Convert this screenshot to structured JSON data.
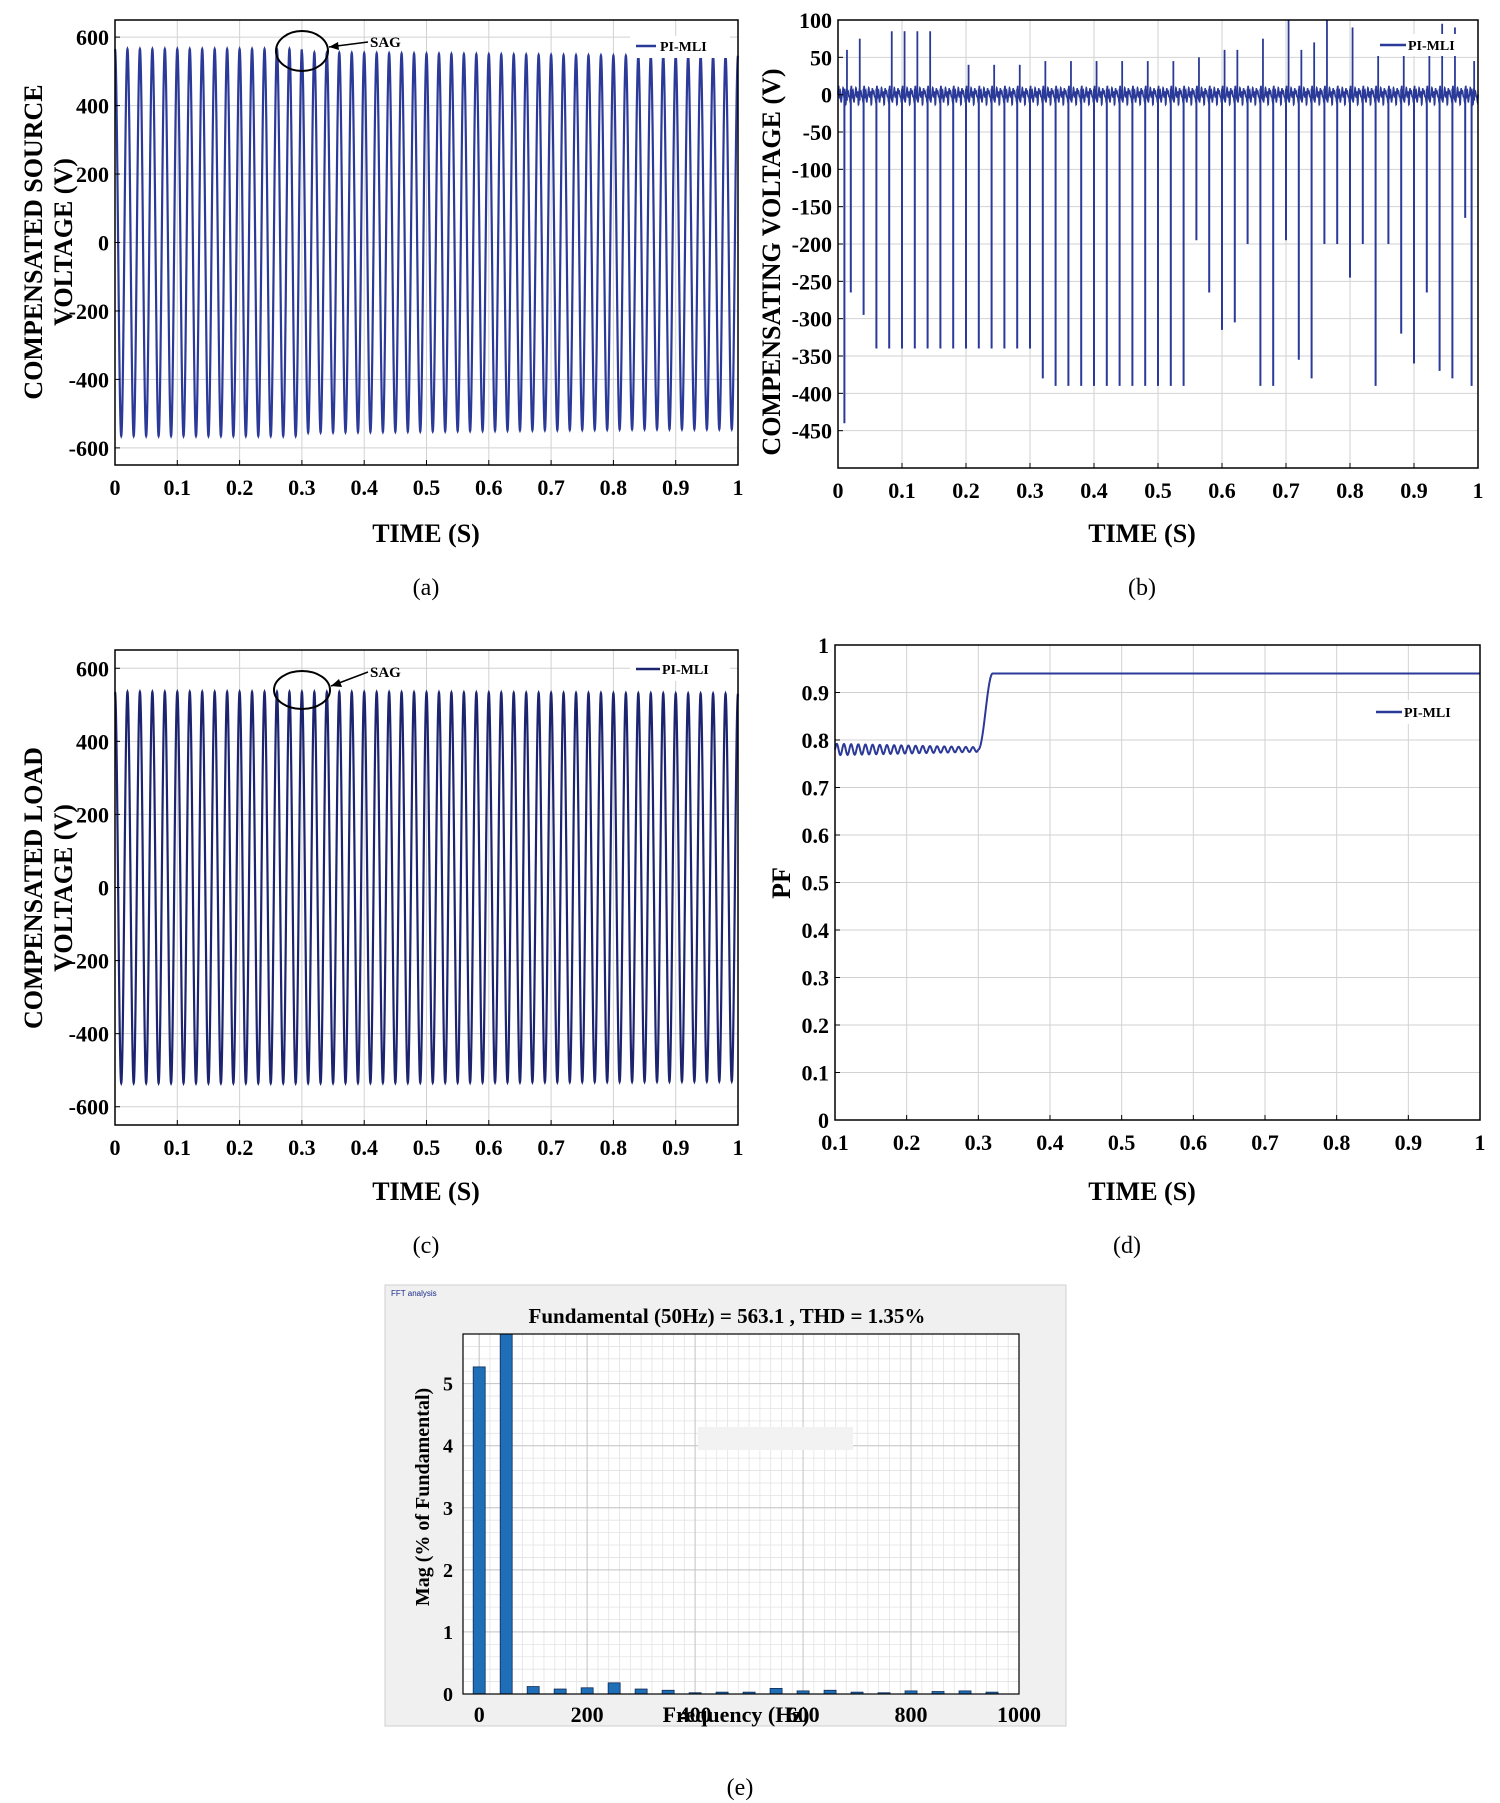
{
  "colors": {
    "trace": "#2b3a98",
    "trace_dark": "#1c2470",
    "bar": "#1f6fb8",
    "bar_edge": "#0d2a55",
    "grid": "#d2d2d2",
    "fft_bg": "#f0f0f0"
  },
  "chart_data": [
    {
      "id": "a",
      "type": "line",
      "caption": "(a)",
      "ylabel_lines": [
        "COMPENSATED SOURCE",
        "VOLTAGE (V)"
      ],
      "xlabel": "TIME (S)",
      "legend": "PI-MLI",
      "annotation": "SAG",
      "xlim": [
        0,
        1
      ],
      "ylim": [
        -650,
        650
      ],
      "xticks": [
        "0",
        "0.1",
        "0.2",
        "0.3",
        "0.4",
        "0.5",
        "0.6",
        "0.7",
        "0.8",
        "0.9",
        "1"
      ],
      "yticks": [
        "600",
        "400",
        "200",
        "0",
        "-200",
        "-400",
        "-600"
      ],
      "signal": {
        "frequency_hz": 50,
        "amplitude_before_sag": 565,
        "amplitude_after_sag": 555,
        "sag_start_s": 0.3,
        "amplitude_end_s": 0.85,
        "amplitude_end": 545
      }
    },
    {
      "id": "b",
      "type": "line",
      "caption": "(b)",
      "ylabel_lines": [
        "COMPENSATING VOLTAGE (V)"
      ],
      "xlabel": "TIME (S)",
      "legend": "PI-MLI",
      "xlim": [
        0,
        1
      ],
      "ylim": [
        -500,
        100
      ],
      "xticks": [
        "0",
        "0.1",
        "0.2",
        "0.3",
        "0.4",
        "0.5",
        "0.6",
        "0.7",
        "0.8",
        "0.9",
        "1"
      ],
      "yticks": [
        "100",
        "50",
        "0",
        "-50",
        "-100",
        "-150",
        "-200",
        "-250",
        "-300",
        "-350",
        "-400",
        "-450"
      ],
      "spikes_negative": [
        [
          0.01,
          -440
        ],
        [
          0.02,
          -265
        ],
        [
          0.04,
          -295
        ],
        [
          0.06,
          -340
        ],
        [
          0.08,
          -340
        ],
        [
          0.1,
          -340
        ],
        [
          0.12,
          -340
        ],
        [
          0.14,
          -340
        ],
        [
          0.16,
          -340
        ],
        [
          0.18,
          -340
        ],
        [
          0.2,
          -340
        ],
        [
          0.22,
          -340
        ],
        [
          0.24,
          -340
        ],
        [
          0.26,
          -340
        ],
        [
          0.28,
          -340
        ],
        [
          0.3,
          -340
        ],
        [
          0.32,
          -380
        ],
        [
          0.34,
          -390
        ],
        [
          0.36,
          -390
        ],
        [
          0.38,
          -390
        ],
        [
          0.4,
          -390
        ],
        [
          0.42,
          -390
        ],
        [
          0.44,
          -390
        ],
        [
          0.46,
          -390
        ],
        [
          0.48,
          -390
        ],
        [
          0.5,
          -390
        ],
        [
          0.52,
          -390
        ],
        [
          0.54,
          -390
        ],
        [
          0.56,
          -195
        ],
        [
          0.58,
          -265
        ],
        [
          0.6,
          -315
        ],
        [
          0.62,
          -305
        ],
        [
          0.64,
          -200
        ],
        [
          0.66,
          -390
        ],
        [
          0.68,
          -390
        ],
        [
          0.7,
          -195
        ],
        [
          0.72,
          -355
        ],
        [
          0.74,
          -380
        ],
        [
          0.76,
          -200
        ],
        [
          0.78,
          -200
        ],
        [
          0.8,
          -245
        ],
        [
          0.82,
          -200
        ],
        [
          0.84,
          -390
        ],
        [
          0.86,
          -200
        ],
        [
          0.88,
          -320
        ],
        [
          0.9,
          -360
        ],
        [
          0.92,
          -265
        ],
        [
          0.94,
          -370
        ],
        [
          0.96,
          -380
        ],
        [
          0.98,
          -165
        ],
        [
          0.99,
          -390
        ]
      ],
      "spikes_positive": [
        [
          0.01,
          60
        ],
        [
          0.03,
          75
        ],
        [
          0.08,
          85
        ],
        [
          0.1,
          85
        ],
        [
          0.12,
          85
        ],
        [
          0.14,
          85
        ],
        [
          0.2,
          40
        ],
        [
          0.24,
          40
        ],
        [
          0.28,
          40
        ],
        [
          0.32,
          45
        ],
        [
          0.36,
          45
        ],
        [
          0.4,
          45
        ],
        [
          0.44,
          45
        ],
        [
          0.48,
          45
        ],
        [
          0.52,
          45
        ],
        [
          0.56,
          50
        ],
        [
          0.6,
          60
        ],
        [
          0.62,
          60
        ],
        [
          0.66,
          75
        ],
        [
          0.7,
          100
        ],
        [
          0.72,
          60
        ],
        [
          0.74,
          70
        ],
        [
          0.76,
          100
        ],
        [
          0.8,
          90
        ],
        [
          0.84,
          70
        ],
        [
          0.88,
          80
        ],
        [
          0.92,
          80
        ],
        [
          0.94,
          95
        ],
        [
          0.96,
          90
        ],
        [
          0.99,
          45
        ]
      ]
    },
    {
      "id": "c",
      "type": "line",
      "caption": "(c)",
      "ylabel_lines": [
        "COMPENSATED LOAD",
        "VOLTAGE (V)"
      ],
      "xlabel": "TIME (S)",
      "legend": "PI-MLI",
      "annotation": "SAG",
      "xlim": [
        0,
        1
      ],
      "ylim": [
        -650,
        650
      ],
      "xticks": [
        "0",
        "0.1",
        "0.2",
        "0.3",
        "0.4",
        "0.5",
        "0.6",
        "0.7",
        "0.8",
        "0.9",
        "1"
      ],
      "yticks": [
        "600",
        "400",
        "200",
        "0",
        "-200",
        "-400",
        "-600"
      ],
      "signal": {
        "frequency_hz": 50,
        "amplitude_before_sag": 535,
        "amplitude_after_sag": 535,
        "sag_start_s": 0.3,
        "amplitude_end_s": 1,
        "amplitude_end": 530
      }
    },
    {
      "id": "d",
      "type": "line",
      "caption": "(d)",
      "ylabel_lines": [
        "PF"
      ],
      "xlabel": "TIME (S)",
      "legend": "PI-MLI",
      "xlim": [
        0.1,
        1
      ],
      "ylim": [
        0,
        1
      ],
      "xticks": [
        "0.1",
        "0.2",
        "0.3",
        "0.4",
        "0.5",
        "0.6",
        "0.7",
        "0.8",
        "0.9",
        "1"
      ],
      "yticks": [
        "1",
        "0.9",
        "0.8",
        "0.7",
        "0.6",
        "0.5",
        "0.4",
        "0.3",
        "0.2",
        "0.1",
        "0"
      ],
      "pf": {
        "before": 0.78,
        "after": 0.94,
        "ripple": 0.012,
        "step_start_s": 0.3,
        "step_end_s": 0.32
      }
    },
    {
      "id": "e",
      "type": "bar",
      "caption": "(e)",
      "window_label": "FFT analysis",
      "title": "Fundamental (50Hz) = 563.1 , THD = 1.35%",
      "xlabel": "Frequency (Hz)",
      "ylabel": "Mag (% of Fundamental)",
      "xlim": [
        -30,
        1000
      ],
      "ylim": [
        0,
        5.8
      ],
      "xticks": [
        "0",
        "200",
        "400",
        "600",
        "800",
        "1000"
      ],
      "yticks": [
        "5",
        "4",
        "3",
        "2",
        "1",
        "0"
      ],
      "x": [
        0,
        50,
        100,
        150,
        200,
        250,
        300,
        350,
        400,
        450,
        500,
        550,
        600,
        650,
        700,
        750,
        800,
        850,
        900,
        950
      ],
      "values": [
        5.27,
        5.8,
        0.12,
        0.08,
        0.1,
        0.18,
        0.08,
        0.06,
        0.02,
        0.03,
        0.03,
        0.09,
        0.05,
        0.06,
        0.03,
        0.02,
        0.05,
        0.04,
        0.05,
        0.03
      ]
    }
  ]
}
